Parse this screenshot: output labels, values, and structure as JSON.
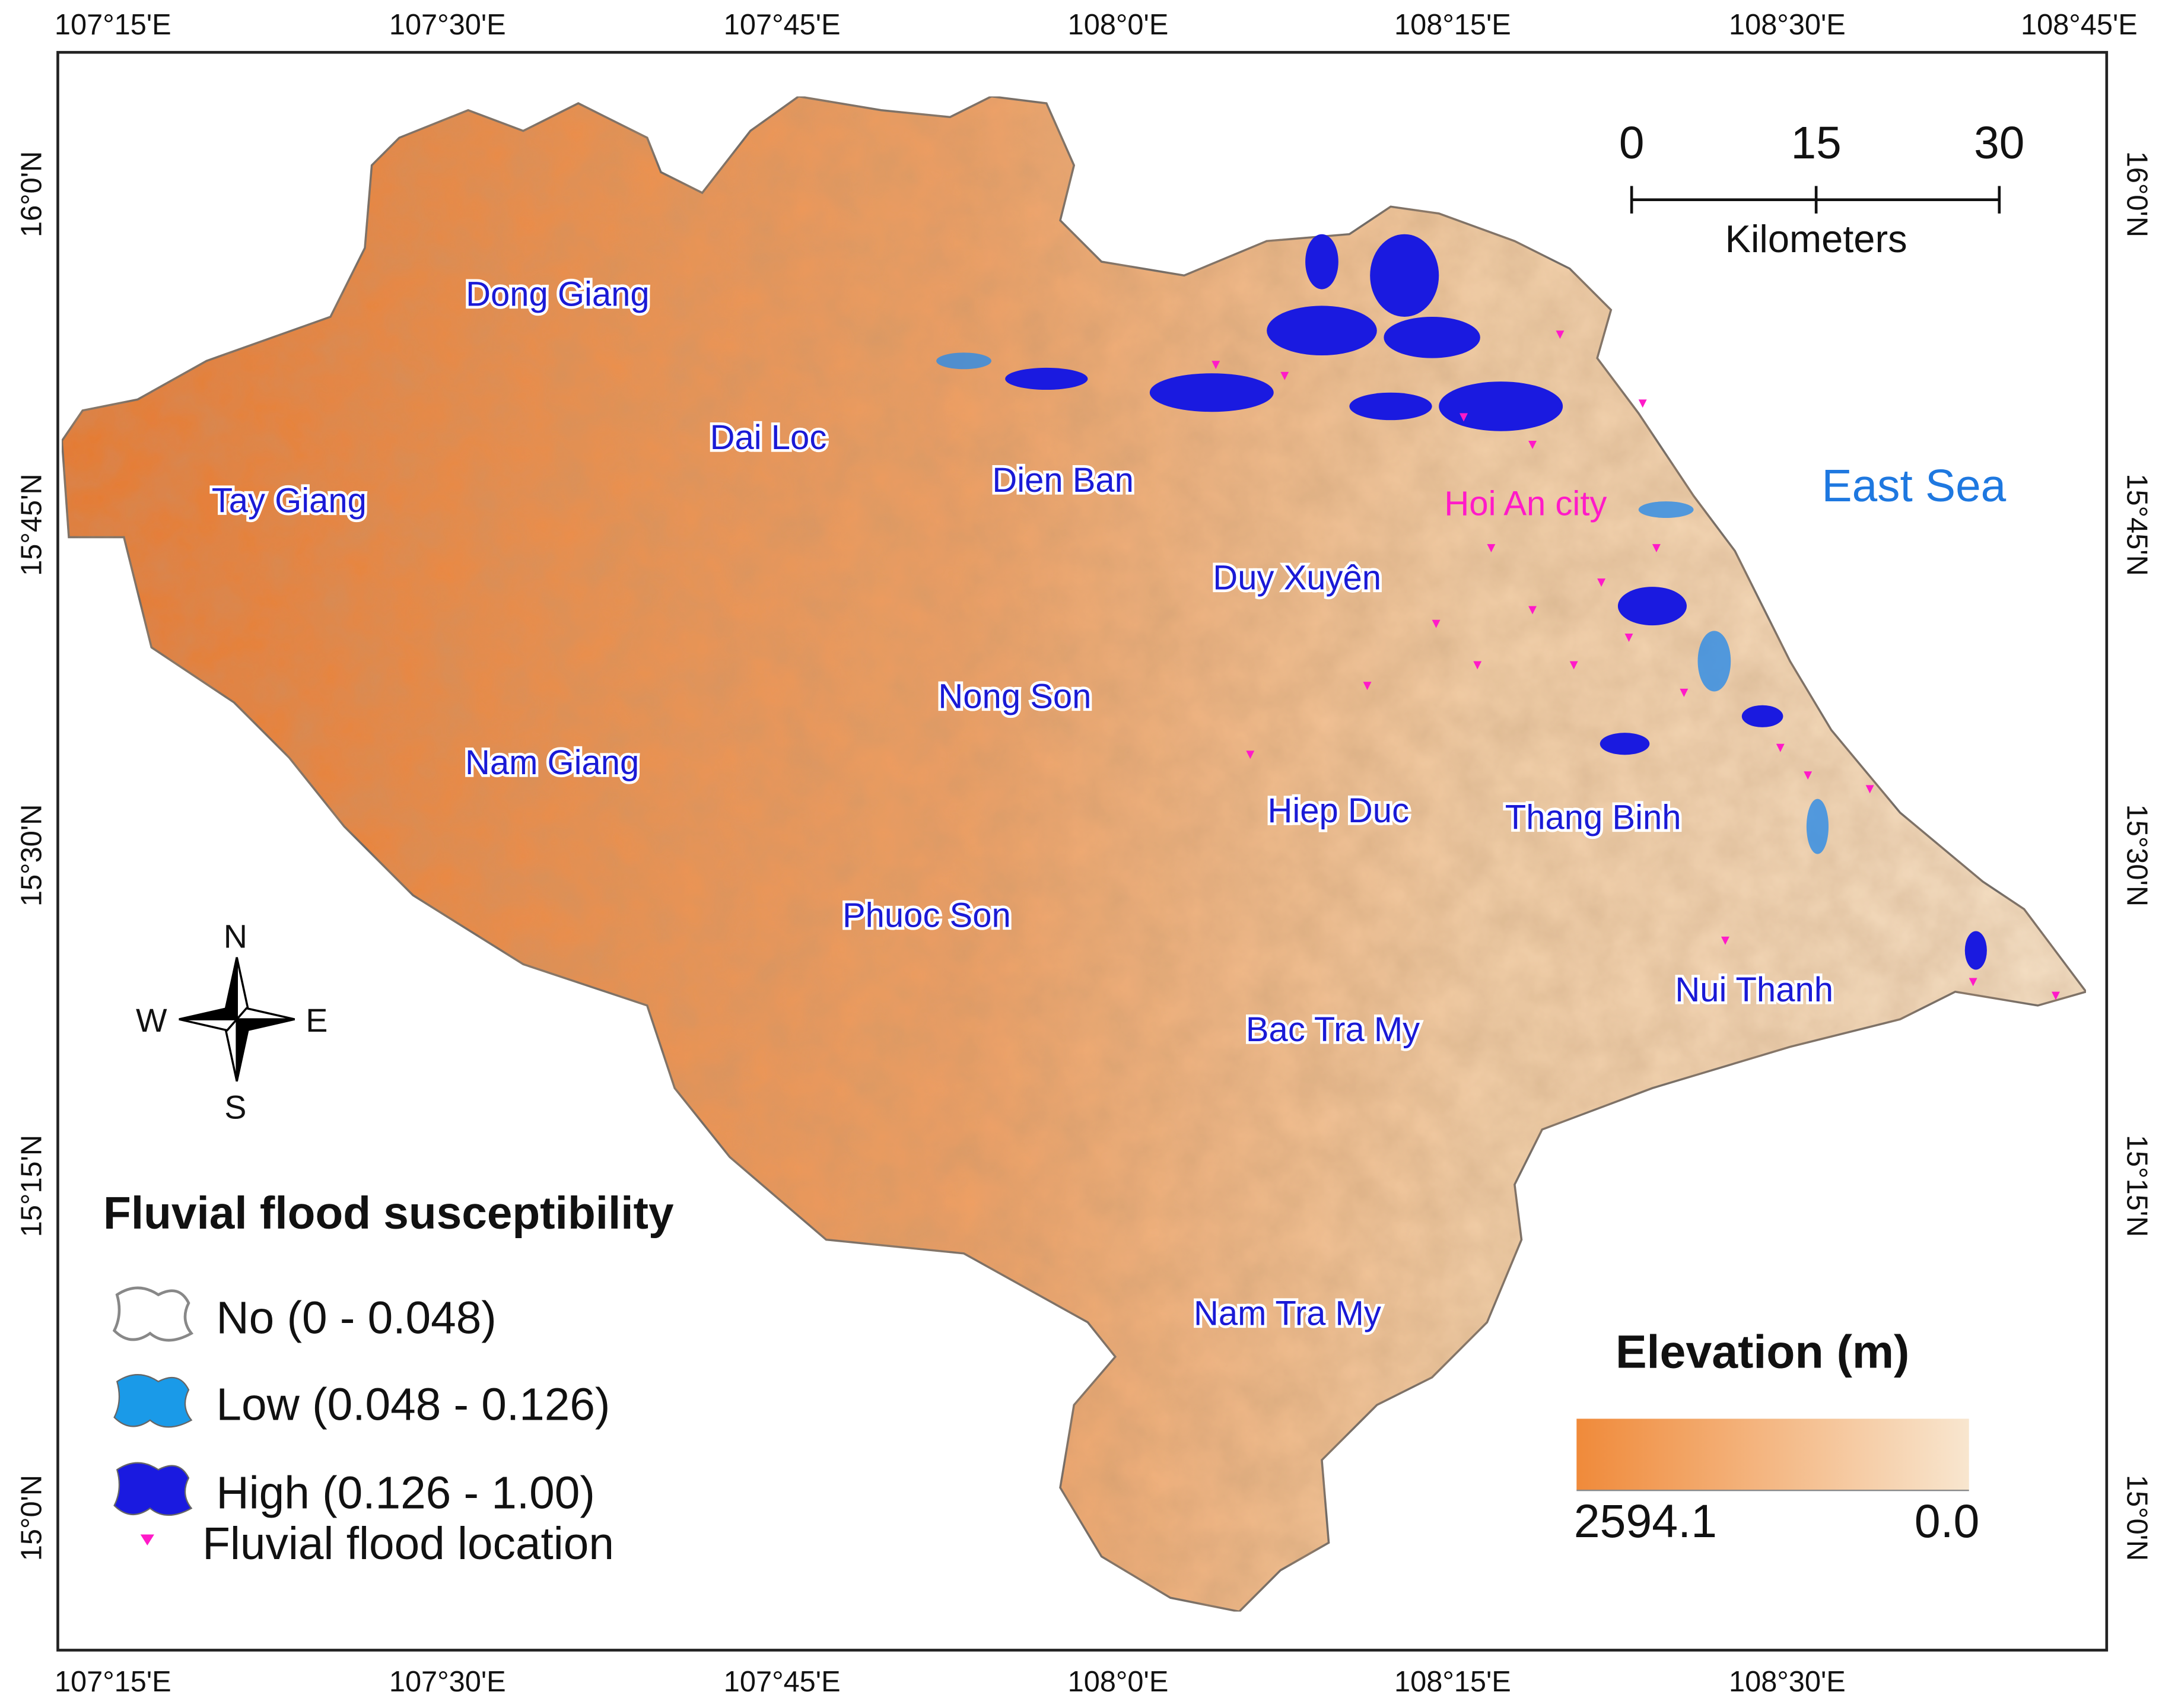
{
  "map": {
    "top_ticks": [
      "107°15'E",
      "107°30'E",
      "107°45'E",
      "108°0'E",
      "108°15'E",
      "108°30'E",
      "108°45'E"
    ],
    "bottom_ticks": [
      "107°15'E",
      "107°30'E",
      "107°45'E",
      "108°0'E",
      "108°15'E",
      "108°30'E"
    ],
    "left_ticks": [
      "16°0'N",
      "15°45'N",
      "15°30'N",
      "15°15'N",
      "15°0'N"
    ],
    "right_ticks": [
      "16°0'N",
      "15°45'N",
      "15°30'N",
      "15°15'N",
      "15°0'N"
    ],
    "districts": [
      "Dong Giang",
      "Tay Giang",
      "Dai Loc",
      "Dien Ban",
      "Duy Xuyên",
      "Nong Son",
      "Nam Giang",
      "Hiep Duc",
      "Thang Binh",
      "Phuoc Son",
      "Nui Thanh",
      "Bac Tra My",
      "Nam Tra My"
    ],
    "city": "Hoi An city",
    "sea": "East Sea"
  },
  "scale_bar": {
    "ticks": [
      0,
      15,
      30
    ],
    "unit": "Kilometers"
  },
  "north_arrow": {
    "n": "N",
    "s": "S",
    "e": "E",
    "w": "W"
  },
  "legend": {
    "title": "Fluvial flood susceptibility",
    "items": [
      "No (0 - 0.048)",
      "Low (0.048 - 0.126)",
      "High (0.126 - 1.00)"
    ],
    "point": "Fluvial flood location"
  },
  "elevation_legend": {
    "title": "Elevation (m)",
    "max": "2594.1",
    "min": "0.0"
  }
}
